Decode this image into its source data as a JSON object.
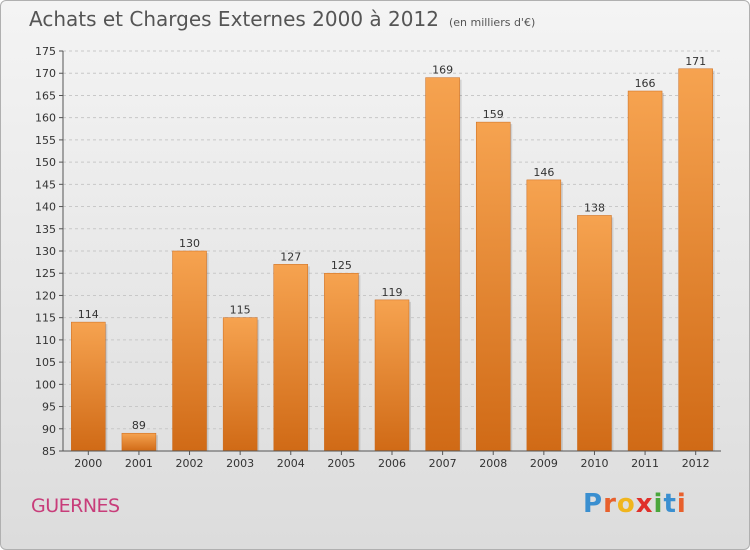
{
  "header": {
    "title": "Achats et Charges Externes 2000 à 2012",
    "unit": "(en milliers d'€)"
  },
  "footer": {
    "place": "GUERNES",
    "logo_letters": [
      "P",
      "r",
      "o",
      "x",
      "i",
      "t",
      "i"
    ],
    "logo_colors": [
      "#3a8fd0",
      "#e8602c",
      "#f0b51e",
      "#e0302a",
      "#4aa63c",
      "#3a8fd0",
      "#e8602c"
    ]
  },
  "colors": {
    "bar_top": "#f6a350",
    "bar_bottom": "#d06a16",
    "grid": "#c8c8c8",
    "axis": "#555555"
  },
  "chart_data": {
    "type": "bar",
    "title": "Achats et Charges Externes 2000 à 2012",
    "subtitle": "(en milliers d'€)",
    "categories": [
      "2000",
      "2001",
      "2002",
      "2003",
      "2004",
      "2005",
      "2006",
      "2007",
      "2008",
      "2009",
      "2010",
      "2011",
      "2012"
    ],
    "values": [
      114,
      89,
      130,
      115,
      127,
      125,
      119,
      169,
      159,
      146,
      138,
      166,
      171
    ],
    "ylim": [
      85,
      175
    ],
    "yticks": [
      85,
      90,
      95,
      100,
      105,
      110,
      115,
      120,
      125,
      130,
      135,
      140,
      145,
      150,
      155,
      160,
      165,
      170,
      175
    ],
    "grid": true,
    "data_labels": true
  }
}
